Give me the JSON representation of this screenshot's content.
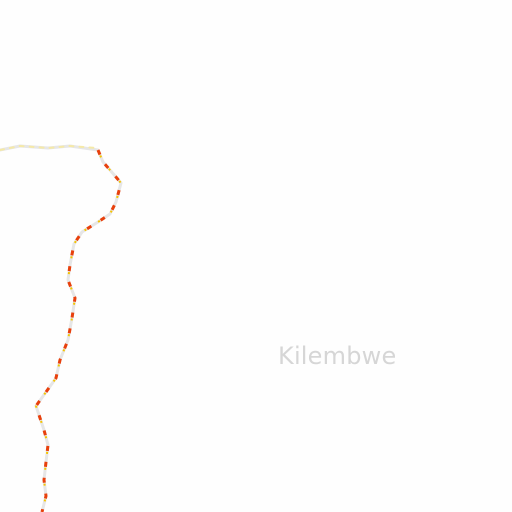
{
  "map": {
    "place_label": "Kilembwe",
    "boundary_color": "#e8400c",
    "boundary_highlight_color": "#f5c400",
    "boundary_casing_color": "#e6e6e6",
    "background_color": "#fefefe"
  }
}
